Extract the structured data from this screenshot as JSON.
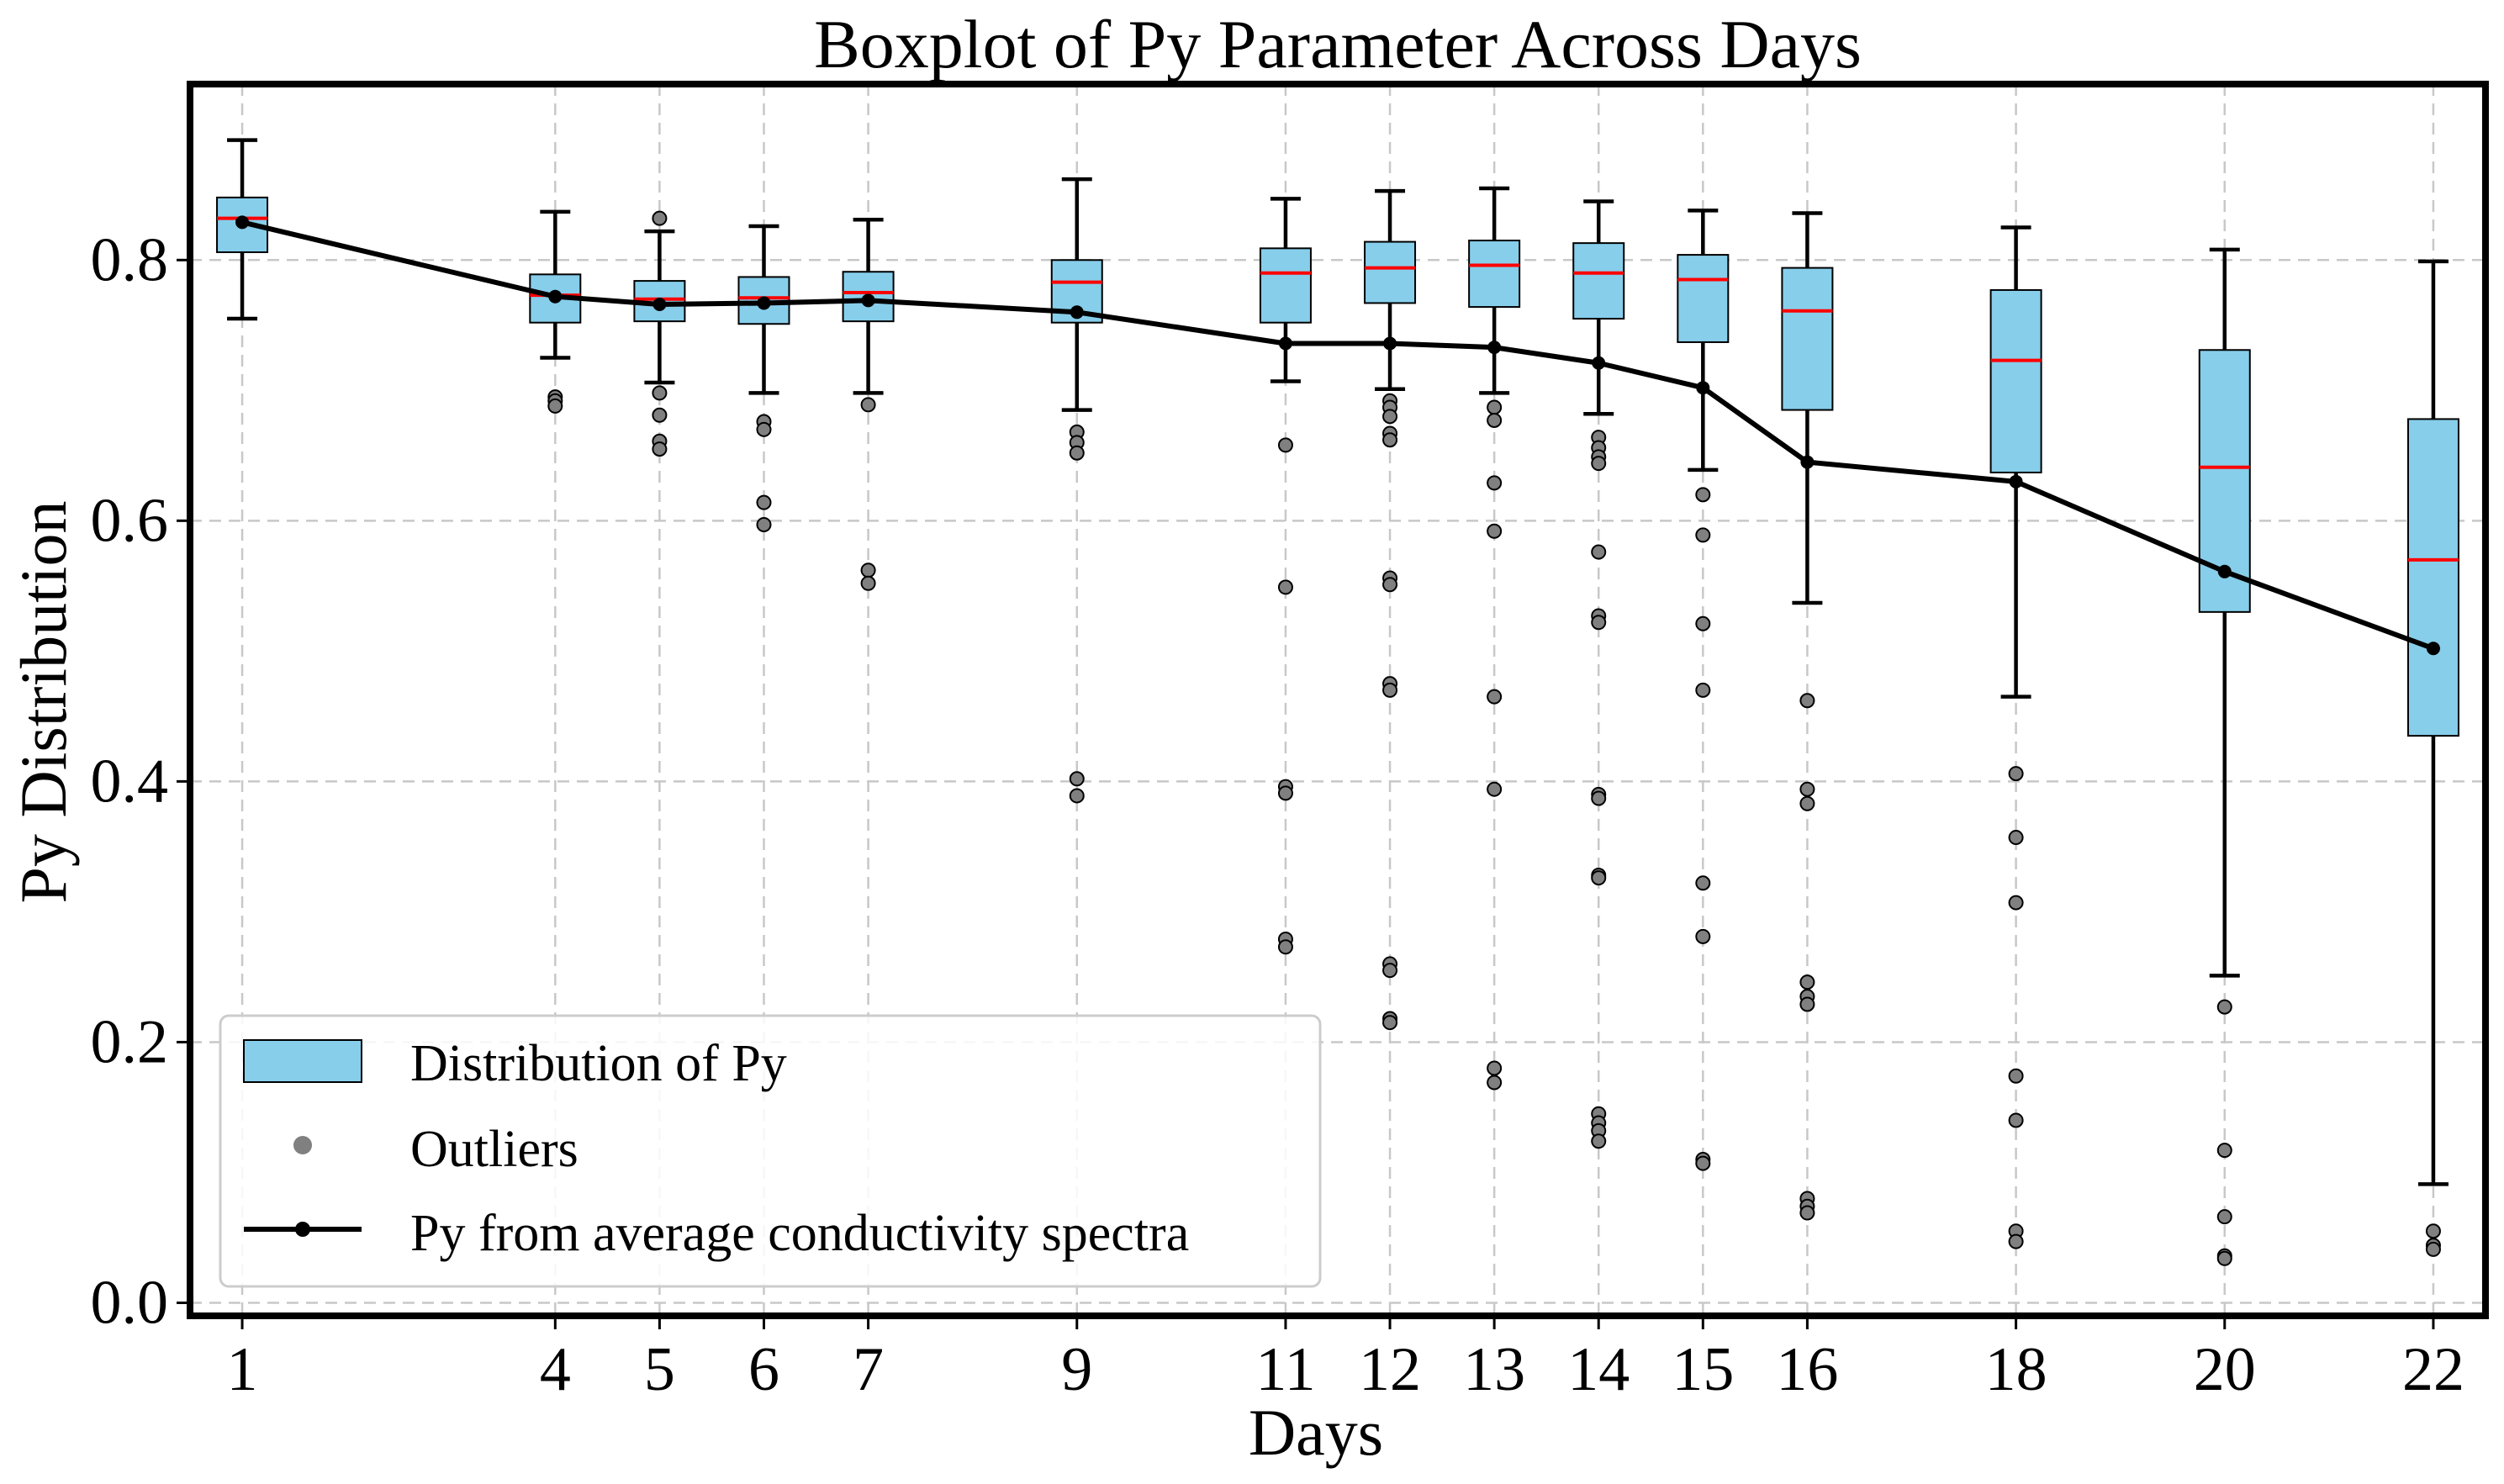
{
  "chart_data": {
    "type": "box",
    "title": "Boxplot of Py Parameter Across Days",
    "xlabel": "Days",
    "ylabel": "Py Distribution",
    "xlim": [
      0.5,
      22.5
    ],
    "ylim": [
      -0.01,
      0.935
    ],
    "yticks": [
      0.0,
      0.2,
      0.4,
      0.6,
      0.8
    ],
    "ytick_labels": [
      "0.0",
      "0.2",
      "0.4",
      "0.6",
      "0.8"
    ],
    "grid": true,
    "legend_position": "bottom-left",
    "legend": [
      {
        "label": "Distribution of Py",
        "kind": "box"
      },
      {
        "label": "Outliers",
        "kind": "dot"
      },
      {
        "label": "Py from average conductivity spectra",
        "kind": "line"
      }
    ],
    "colors": {
      "box": "#87ceeb",
      "median": "#ff0000",
      "line": "#000000",
      "outlier": "#808080"
    },
    "boxes": [
      {
        "day": 1,
        "whislo": 0.755,
        "q1": 0.806,
        "med": 0.832,
        "q3": 0.848,
        "whishi": 0.892,
        "outliers": []
      },
      {
        "day": 4,
        "whislo": 0.725,
        "q1": 0.752,
        "med": 0.773,
        "q3": 0.789,
        "whishi": 0.837,
        "outliers": [
          0.695,
          0.692,
          0.688
        ]
      },
      {
        "day": 5,
        "whislo": 0.706,
        "q1": 0.753,
        "med": 0.77,
        "q3": 0.784,
        "whishi": 0.822,
        "outliers": [
          0.832,
          0.698,
          0.681,
          0.661,
          0.655
        ]
      },
      {
        "day": 6,
        "whislo": 0.698,
        "q1": 0.751,
        "med": 0.771,
        "q3": 0.787,
        "whishi": 0.826,
        "outliers": [
          0.676,
          0.67,
          0.614,
          0.597
        ]
      },
      {
        "day": 7,
        "whislo": 0.698,
        "q1": 0.753,
        "med": 0.775,
        "q3": 0.791,
        "whishi": 0.831,
        "outliers": [
          0.689,
          0.562,
          0.552
        ]
      },
      {
        "day": 9,
        "whislo": 0.685,
        "q1": 0.752,
        "med": 0.783,
        "q3": 0.8,
        "whishi": 0.862,
        "outliers": [
          0.668,
          0.66,
          0.652,
          0.402,
          0.389
        ]
      },
      {
        "day": 11,
        "whislo": 0.707,
        "q1": 0.752,
        "med": 0.79,
        "q3": 0.809,
        "whishi": 0.847,
        "outliers": [
          0.658,
          0.549,
          0.396,
          0.391,
          0.279,
          0.273
        ]
      },
      {
        "day": 12,
        "whislo": 0.701,
        "q1": 0.767,
        "med": 0.794,
        "q3": 0.814,
        "whishi": 0.853,
        "outliers": [
          0.692,
          0.687,
          0.68,
          0.667,
          0.662,
          0.556,
          0.551,
          0.475,
          0.47,
          0.26,
          0.255,
          0.218,
          0.215
        ]
      },
      {
        "day": 13,
        "whislo": 0.698,
        "q1": 0.764,
        "med": 0.796,
        "q3": 0.815,
        "whishi": 0.855,
        "outliers": [
          0.687,
          0.677,
          0.629,
          0.592,
          0.465,
          0.394,
          0.18,
          0.169
        ]
      },
      {
        "day": 14,
        "whislo": 0.682,
        "q1": 0.755,
        "med": 0.79,
        "q3": 0.813,
        "whishi": 0.845,
        "outliers": [
          0.664,
          0.656,
          0.649,
          0.644,
          0.576,
          0.527,
          0.522,
          0.39,
          0.387,
          0.328,
          0.326,
          0.145,
          0.138,
          0.132,
          0.124
        ]
      },
      {
        "day": 15,
        "whislo": 0.639,
        "q1": 0.737,
        "med": 0.785,
        "q3": 0.804,
        "whishi": 0.838,
        "outliers": [
          0.62,
          0.589,
          0.521,
          0.47,
          0.322,
          0.281,
          0.11,
          0.107
        ]
      },
      {
        "day": 16,
        "whislo": 0.537,
        "q1": 0.685,
        "med": 0.761,
        "q3": 0.794,
        "whishi": 0.836,
        "outliers": [
          0.462,
          0.394,
          0.383,
          0.246,
          0.235,
          0.229,
          0.08,
          0.074,
          0.069
        ]
      },
      {
        "day": 18,
        "whislo": 0.465,
        "q1": 0.637,
        "med": 0.723,
        "q3": 0.777,
        "whishi": 0.825,
        "outliers": [
          0.406,
          0.357,
          0.307,
          0.174,
          0.14,
          0.055,
          0.047
        ]
      },
      {
        "day": 20,
        "whislo": 0.251,
        "q1": 0.53,
        "med": 0.641,
        "q3": 0.731,
        "whishi": 0.808,
        "outliers": [
          0.227,
          0.117,
          0.066,
          0.036,
          0.034
        ]
      },
      {
        "day": 22,
        "whislo": 0.091,
        "q1": 0.435,
        "med": 0.57,
        "q3": 0.678,
        "whishi": 0.799,
        "outliers": [
          0.055,
          0.044,
          0.041
        ]
      }
    ],
    "average_line": {
      "name": "Py from average conductivity spectra",
      "x": [
        1,
        4,
        5,
        6,
        7,
        9,
        11,
        12,
        13,
        14,
        15,
        16,
        18,
        20,
        22
      ],
      "y": [
        0.829,
        0.772,
        0.766,
        0.767,
        0.769,
        0.76,
        0.736,
        0.736,
        0.733,
        0.721,
        0.702,
        0.645,
        0.63,
        0.561,
        0.502
      ]
    }
  }
}
